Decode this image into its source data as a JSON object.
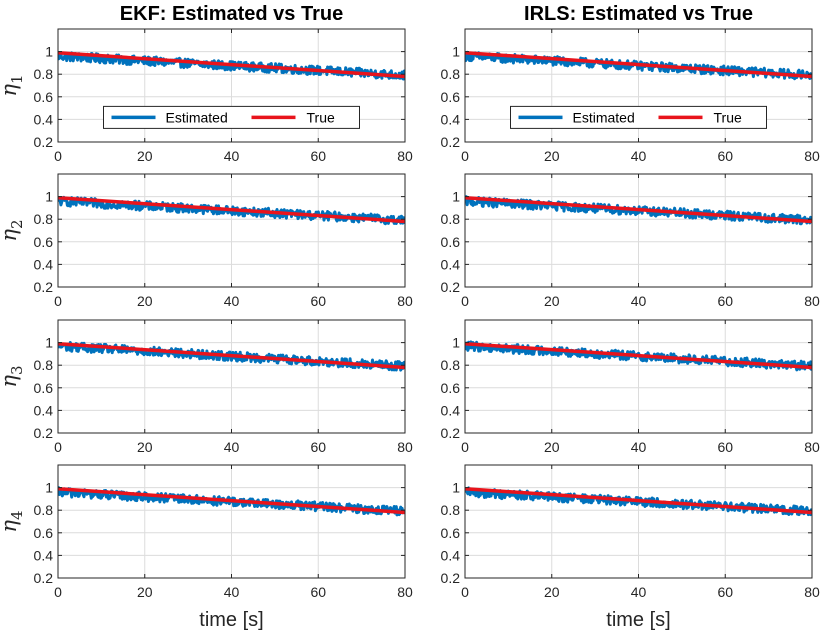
{
  "colors": {
    "estimated": "#0072BD",
    "true": "#E8141C",
    "grid": "#DCDCDC",
    "axis": "#262626"
  },
  "shared_axes": {
    "xlim": [
      0,
      80
    ],
    "ylim": [
      0.2,
      1.2
    ],
    "xticks": [
      0,
      20,
      40,
      60,
      80
    ],
    "yticks": [
      0.2,
      0.4,
      0.6,
      0.8,
      1.0
    ],
    "ytick_labels": [
      "0.2",
      "0.4",
      "0.6",
      "0.8",
      "1"
    ],
    "xlabel": "time [s]",
    "ylabel_symbol": "η"
  },
  "legend": {
    "estimated_label": "Estimated",
    "true_label": "True",
    "location": "bottom-center of top row panels"
  },
  "chart_data": [
    {
      "type": "line",
      "column": "EKF",
      "row": 1,
      "title": "EKF: Estimated vs True",
      "ylabel": "η1",
      "ylabel_sub": "1",
      "legend": true,
      "xlabel": "",
      "series": [
        {
          "name": "True",
          "x": [
            0,
            80
          ],
          "y": [
            0.99,
            0.78
          ]
        },
        {
          "name": "Estimated",
          "x_range": [
            0,
            80
          ],
          "trend": [
            0.96,
            0.79
          ],
          "noise_band": 0.04
        }
      ]
    },
    {
      "type": "line",
      "column": "IRLS",
      "row": 1,
      "title": "IRLS: Estimated vs True",
      "ylabel": "",
      "ylabel_sub": "",
      "legend": true,
      "xlabel": "",
      "series": [
        {
          "name": "True",
          "x": [
            0,
            80
          ],
          "y": [
            0.99,
            0.78
          ]
        },
        {
          "name": "Estimated",
          "x_range": [
            0,
            80
          ],
          "trend": [
            0.96,
            0.79
          ],
          "noise_band": 0.04
        }
      ]
    },
    {
      "type": "line",
      "column": "EKF",
      "row": 2,
      "title": "",
      "ylabel": "η2",
      "ylabel_sub": "2",
      "legend": false,
      "xlabel": "",
      "series": [
        {
          "name": "True",
          "x": [
            0,
            80
          ],
          "y": [
            0.99,
            0.78
          ]
        },
        {
          "name": "Estimated",
          "x_range": [
            0,
            80
          ],
          "trend": [
            0.96,
            0.79
          ],
          "noise_band": 0.04
        }
      ]
    },
    {
      "type": "line",
      "column": "IRLS",
      "row": 2,
      "title": "",
      "ylabel": "",
      "ylabel_sub": "",
      "legend": false,
      "xlabel": "",
      "series": [
        {
          "name": "True",
          "x": [
            0,
            80
          ],
          "y": [
            0.99,
            0.78
          ]
        },
        {
          "name": "Estimated",
          "x_range": [
            0,
            80
          ],
          "trend": [
            0.96,
            0.79
          ],
          "noise_band": 0.04
        }
      ]
    },
    {
      "type": "line",
      "column": "EKF",
      "row": 3,
      "title": "",
      "ylabel": "η3",
      "ylabel_sub": "3",
      "legend": false,
      "xlabel": "",
      "series": [
        {
          "name": "True",
          "x": [
            0,
            80
          ],
          "y": [
            0.99,
            0.78
          ]
        },
        {
          "name": "Estimated",
          "x_range": [
            0,
            80
          ],
          "trend": [
            0.97,
            0.79
          ],
          "noise_band": 0.04
        }
      ]
    },
    {
      "type": "line",
      "column": "IRLS",
      "row": 3,
      "title": "",
      "ylabel": "",
      "ylabel_sub": "",
      "legend": false,
      "xlabel": "",
      "series": [
        {
          "name": "True",
          "x": [
            0,
            80
          ],
          "y": [
            0.99,
            0.78
          ]
        },
        {
          "name": "Estimated",
          "x_range": [
            0,
            80
          ],
          "trend": [
            0.97,
            0.79
          ],
          "noise_band": 0.04
        }
      ]
    },
    {
      "type": "line",
      "column": "EKF",
      "row": 4,
      "title": "",
      "ylabel": "η4",
      "ylabel_sub": "4",
      "legend": false,
      "xlabel": "time [s]",
      "series": [
        {
          "name": "True",
          "x": [
            0,
            80
          ],
          "y": [
            0.99,
            0.78
          ]
        },
        {
          "name": "Estimated",
          "x_range": [
            0,
            80
          ],
          "trend": [
            0.96,
            0.79
          ],
          "noise_band": 0.04
        }
      ]
    },
    {
      "type": "line",
      "column": "IRLS",
      "row": 4,
      "title": "",
      "ylabel": "",
      "ylabel_sub": "",
      "legend": false,
      "xlabel": "time [s]",
      "series": [
        {
          "name": "True",
          "x": [
            0,
            80
          ],
          "y": [
            0.99,
            0.78
          ]
        },
        {
          "name": "Estimated",
          "x_range": [
            0,
            80
          ],
          "trend": [
            0.96,
            0.79
          ],
          "noise_band": 0.04
        }
      ]
    }
  ]
}
